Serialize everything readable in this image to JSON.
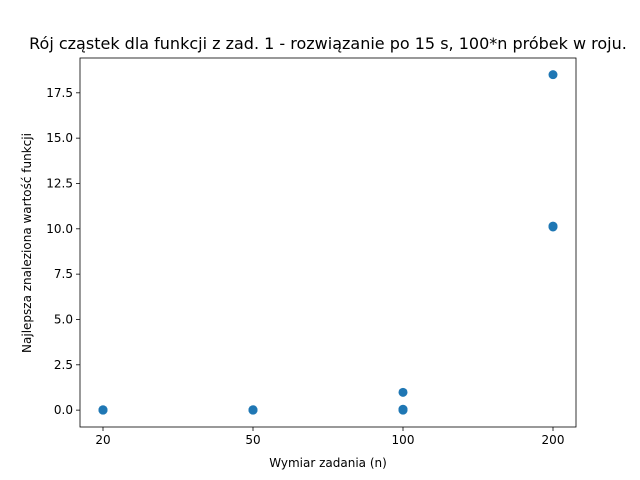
{
  "chart_data": {
    "type": "scatter",
    "title": "Rój cząstek dla funkcji z zad. 1 - rozwiązanie po 15 s, 100*n próbek w roju.",
    "xlabel": "Wymiar zadania (n)",
    "ylabel": "Najlepsza znaleziona wartość funkcji",
    "x_axis_kind": "categorical",
    "categories": [
      "20",
      "50",
      "100",
      "200"
    ],
    "xticks": [
      "20",
      "50",
      "100",
      "200"
    ],
    "ylim": [
      -0.93,
      19.42
    ],
    "yticks": [
      0.0,
      2.5,
      5.0,
      7.5,
      10.0,
      12.5,
      15.0,
      17.5
    ],
    "ytick_labels": [
      "0.0",
      "2.5",
      "5.0",
      "7.5",
      "10.0",
      "12.5",
      "15.0",
      "17.5"
    ],
    "grid": false,
    "legend": "none",
    "marker_color": "#1f77b4",
    "series": [
      {
        "points": [
          {
            "x": "20",
            "y": 0.0
          },
          {
            "x": "20",
            "y": 0.01
          },
          {
            "x": "20",
            "y": 0.02
          },
          {
            "x": "50",
            "y": 0.0
          },
          {
            "x": "50",
            "y": 0.01
          },
          {
            "x": "50",
            "y": 0.02
          },
          {
            "x": "100",
            "y": 0.0
          },
          {
            "x": "100",
            "y": 0.03
          },
          {
            "x": "100",
            "y": 0.05
          },
          {
            "x": "100",
            "y": 0.98
          },
          {
            "x": "200",
            "y": 10.1
          },
          {
            "x": "200",
            "y": 10.15
          },
          {
            "x": "200",
            "y": 18.5
          }
        ]
      }
    ]
  }
}
